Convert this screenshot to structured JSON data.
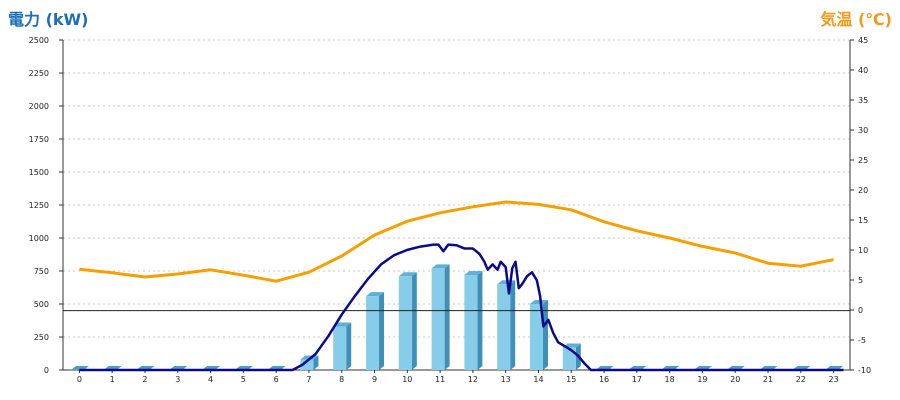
{
  "chart_data": {
    "type": "bar+line",
    "left_axis_title": "電力 (kW)",
    "right_axis_title": "気温 (℃)",
    "left_axis_color": "#1f6fb5",
    "right_axis_color": "#f39a1b",
    "x": [
      "0",
      "1",
      "2",
      "3",
      "4",
      "5",
      "6",
      "7",
      "8",
      "9",
      "10",
      "11",
      "12",
      "13",
      "14",
      "15",
      "16",
      "17",
      "18",
      "19",
      "20",
      "21",
      "22",
      "23"
    ],
    "left_ylim": [
      0,
      2500
    ],
    "left_ticks": [
      "0",
      "250",
      "500",
      "750",
      "1000",
      "1250",
      "1500",
      "1750",
      "2000",
      "2250",
      "2500"
    ],
    "right_ylim": [
      -10,
      45
    ],
    "right_ticks": [
      "-10",
      "-5",
      "0",
      "5",
      "10",
      "15",
      "20",
      "25",
      "30",
      "35",
      "40",
      "45"
    ],
    "grid": "horizontal dotted",
    "bars": {
      "color": "#87cdea",
      "axis": "left",
      "values": [
        0,
        0,
        0,
        0,
        0,
        0,
        0,
        80,
        330,
        560,
        710,
        770,
        720,
        650,
        500,
        170,
        0,
        0,
        0,
        0,
        0,
        0,
        0,
        0
      ]
    },
    "temperature_line": {
      "color": "#f5a000",
      "axis": "right",
      "values": [
        6.8,
        6.2,
        5.5,
        6.0,
        6.7,
        5.8,
        4.8,
        6.3,
        9.0,
        12.5,
        14.8,
        16.2,
        17.2,
        18.0,
        17.6,
        16.7,
        14.7,
        13.2,
        12.0,
        10.6,
        9.5,
        7.8,
        7.3,
        8.4
      ]
    },
    "power_line": {
      "color": "#0a0a8a",
      "axis": "left",
      "points": [
        [
          0,
          0
        ],
        [
          6.5,
          0
        ],
        [
          6.8,
          40
        ],
        [
          7.2,
          120
        ],
        [
          7.6,
          260
        ],
        [
          8.0,
          420
        ],
        [
          8.4,
          560
        ],
        [
          8.8,
          690
        ],
        [
          9.2,
          800
        ],
        [
          9.6,
          870
        ],
        [
          10.0,
          910
        ],
        [
          10.4,
          935
        ],
        [
          10.8,
          950
        ],
        [
          10.95,
          950
        ],
        [
          11.1,
          900
        ],
        [
          11.25,
          950
        ],
        [
          11.5,
          945
        ],
        [
          11.75,
          920
        ],
        [
          12.0,
          920
        ],
        [
          12.2,
          880
        ],
        [
          12.35,
          820
        ],
        [
          12.45,
          760
        ],
        [
          12.6,
          800
        ],
        [
          12.75,
          760
        ],
        [
          12.85,
          820
        ],
        [
          13.0,
          780
        ],
        [
          13.1,
          580
        ],
        [
          13.2,
          770
        ],
        [
          13.3,
          820
        ],
        [
          13.4,
          620
        ],
        [
          13.5,
          650
        ],
        [
          13.65,
          710
        ],
        [
          13.8,
          740
        ],
        [
          13.95,
          680
        ],
        [
          14.05,
          560
        ],
        [
          14.15,
          330
        ],
        [
          14.3,
          380
        ],
        [
          14.45,
          280
        ],
        [
          14.6,
          210
        ],
        [
          14.8,
          180
        ],
        [
          15.0,
          150
        ],
        [
          15.2,
          110
        ],
        [
          15.4,
          50
        ],
        [
          15.6,
          0
        ],
        [
          23.3,
          0
        ]
      ]
    },
    "reference_line_left_value": 450
  }
}
